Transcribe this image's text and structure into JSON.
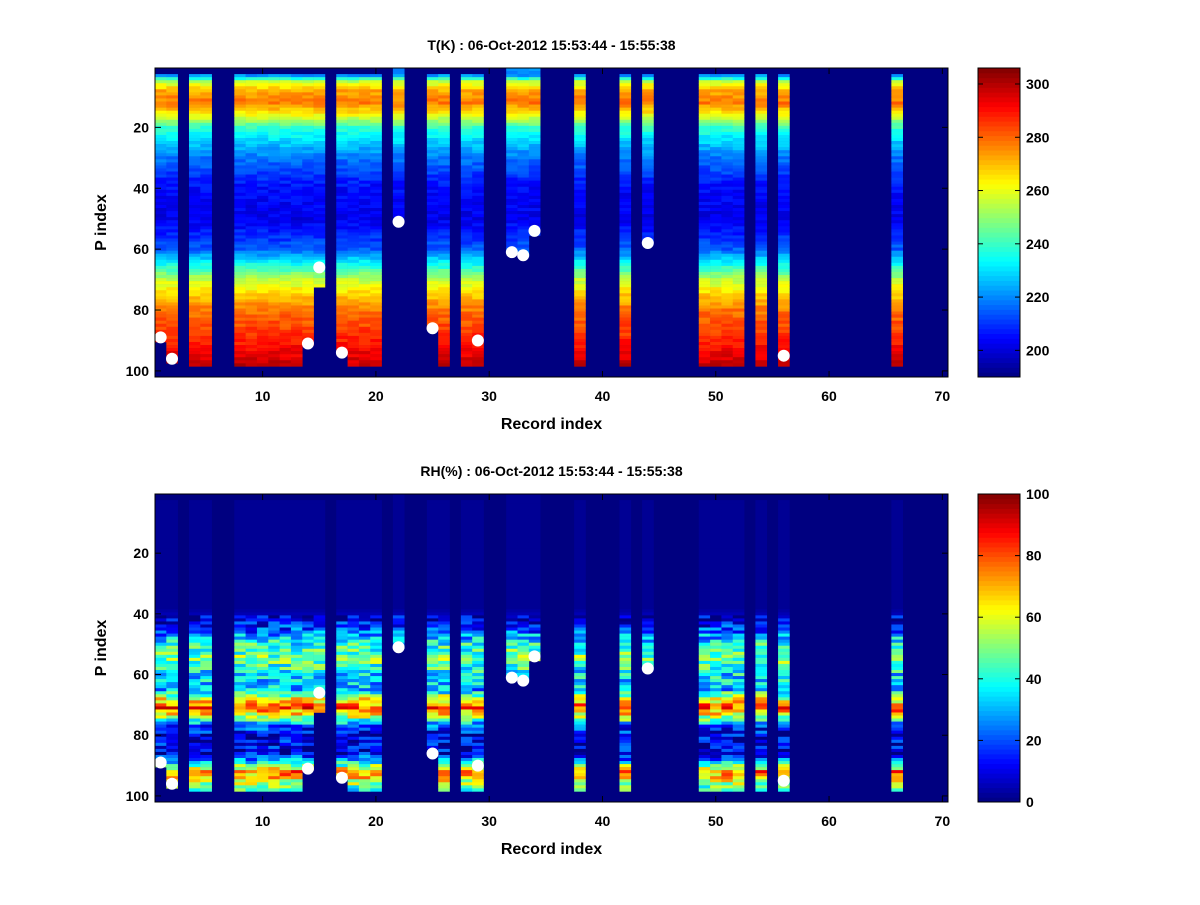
{
  "chart_data": [
    {
      "type": "heatmap",
      "title": "T(K) : 06-Oct-2012 15:53:44 - 15:55:38",
      "xlabel": "Record index",
      "ylabel": "P index",
      "xlim": [
        0.5,
        70.5
      ],
      "ylim": [
        0.5,
        102
      ],
      "xticks": [
        10,
        20,
        30,
        40,
        50,
        60,
        70
      ],
      "yticks": [
        20,
        40,
        60,
        80,
        100
      ],
      "colormap": "jet",
      "clim": [
        190,
        306
      ],
      "colorbar_ticks": [
        200,
        220,
        240,
        260,
        280,
        300
      ],
      "background_value": 190,
      "profile_p": [
        3,
        5,
        8,
        12,
        15,
        20,
        25,
        30,
        40,
        50,
        60,
        65,
        70,
        75,
        80,
        90,
        98
      ],
      "profile_values": [
        222,
        255,
        272,
        278,
        266,
        240,
        228,
        218,
        205,
        202,
        215,
        235,
        255,
        268,
        278,
        288,
        298
      ],
      "surface_markers": [
        [
          1,
          89
        ],
        [
          2,
          96
        ],
        [
          14,
          91
        ],
        [
          15,
          66
        ],
        [
          17,
          94
        ],
        [
          22,
          51
        ],
        [
          25,
          86
        ],
        [
          29,
          90
        ],
        [
          32,
          61
        ],
        [
          33,
          62
        ],
        [
          34,
          54
        ],
        [
          44,
          58
        ],
        [
          56,
          95
        ]
      ]
    },
    {
      "type": "heatmap",
      "title": "RH(%) : 06-Oct-2012 15:53:44 - 15:55:38",
      "xlabel": "Record index",
      "ylabel": "P index",
      "xlim": [
        0.5,
        70.5
      ],
      "ylim": [
        0.5,
        102
      ],
      "xticks": [
        10,
        20,
        30,
        40,
        50,
        60,
        70
      ],
      "yticks": [
        20,
        40,
        60,
        80,
        100
      ],
      "colormap": "jet",
      "clim": [
        0,
        100
      ],
      "colorbar_ticks": [
        0,
        20,
        40,
        60,
        80,
        100
      ],
      "background_value": 0,
      "profile_p": [
        1,
        38,
        42,
        46,
        50,
        55,
        60,
        65,
        68,
        71,
        74,
        77,
        80,
        86,
        89,
        92,
        95,
        98
      ],
      "profile_values": [
        2,
        2,
        8,
        22,
        40,
        50,
        35,
        30,
        60,
        80,
        55,
        20,
        10,
        10,
        35,
        75,
        60,
        40
      ],
      "surface_markers": [
        [
          1,
          89
        ],
        [
          2,
          96
        ],
        [
          14,
          91
        ],
        [
          15,
          66
        ],
        [
          17,
          94
        ],
        [
          22,
          51
        ],
        [
          25,
          86
        ],
        [
          29,
          90
        ],
        [
          32,
          61
        ],
        [
          33,
          62
        ],
        [
          34,
          54
        ],
        [
          44,
          58
        ],
        [
          56,
          95
        ]
      ]
    }
  ],
  "records": [
    {
      "rec": 1,
      "top": 3,
      "bottom": 90
    },
    {
      "rec": 2,
      "top": 3,
      "bottom": 97
    },
    {
      "rec": 4,
      "top": 3,
      "bottom": 98
    },
    {
      "rec": 5,
      "top": 3,
      "bottom": 98
    },
    {
      "rec": 8,
      "top": 3,
      "bottom": 98
    },
    {
      "rec": 9,
      "top": 3,
      "bottom": 98
    },
    {
      "rec": 10,
      "top": 3,
      "bottom": 98
    },
    {
      "rec": 11,
      "top": 3,
      "bottom": 98
    },
    {
      "rec": 12,
      "top": 3,
      "bottom": 98
    },
    {
      "rec": 13,
      "top": 3,
      "bottom": 98
    },
    {
      "rec": 14,
      "top": 3,
      "bottom": 91
    },
    {
      "rec": 15,
      "top": 3,
      "bottom": 72
    },
    {
      "rec": 17,
      "top": 3,
      "bottom": 93
    },
    {
      "rec": 18,
      "top": 3,
      "bottom": 98
    },
    {
      "rec": 19,
      "top": 3,
      "bottom": 98
    },
    {
      "rec": 20,
      "top": 3,
      "bottom": 98
    },
    {
      "rec": 22,
      "top": 1,
      "bottom": 51
    },
    {
      "rec": 25,
      "top": 3,
      "bottom": 86
    },
    {
      "rec": 26,
      "top": 3,
      "bottom": 98
    },
    {
      "rec": 28,
      "top": 3,
      "bottom": 98
    },
    {
      "rec": 29,
      "top": 3,
      "bottom": 98
    },
    {
      "rec": 32,
      "top": 1,
      "bottom": 61
    },
    {
      "rec": 33,
      "top": 1,
      "bottom": 62
    },
    {
      "rec": 34,
      "top": 1,
      "bottom": 55
    },
    {
      "rec": 38,
      "top": 3,
      "bottom": 98
    },
    {
      "rec": 42,
      "top": 3,
      "bottom": 98
    },
    {
      "rec": 44,
      "top": 3,
      "bottom": 58
    },
    {
      "rec": 49,
      "top": 3,
      "bottom": 98
    },
    {
      "rec": 50,
      "top": 3,
      "bottom": 98
    },
    {
      "rec": 51,
      "top": 3,
      "bottom": 98
    },
    {
      "rec": 52,
      "top": 3,
      "bottom": 98
    },
    {
      "rec": 54,
      "top": 3,
      "bottom": 98
    },
    {
      "rec": 56,
      "top": 3,
      "bottom": 98
    },
    {
      "rec": 66,
      "top": 3,
      "bottom": 98
    }
  ]
}
